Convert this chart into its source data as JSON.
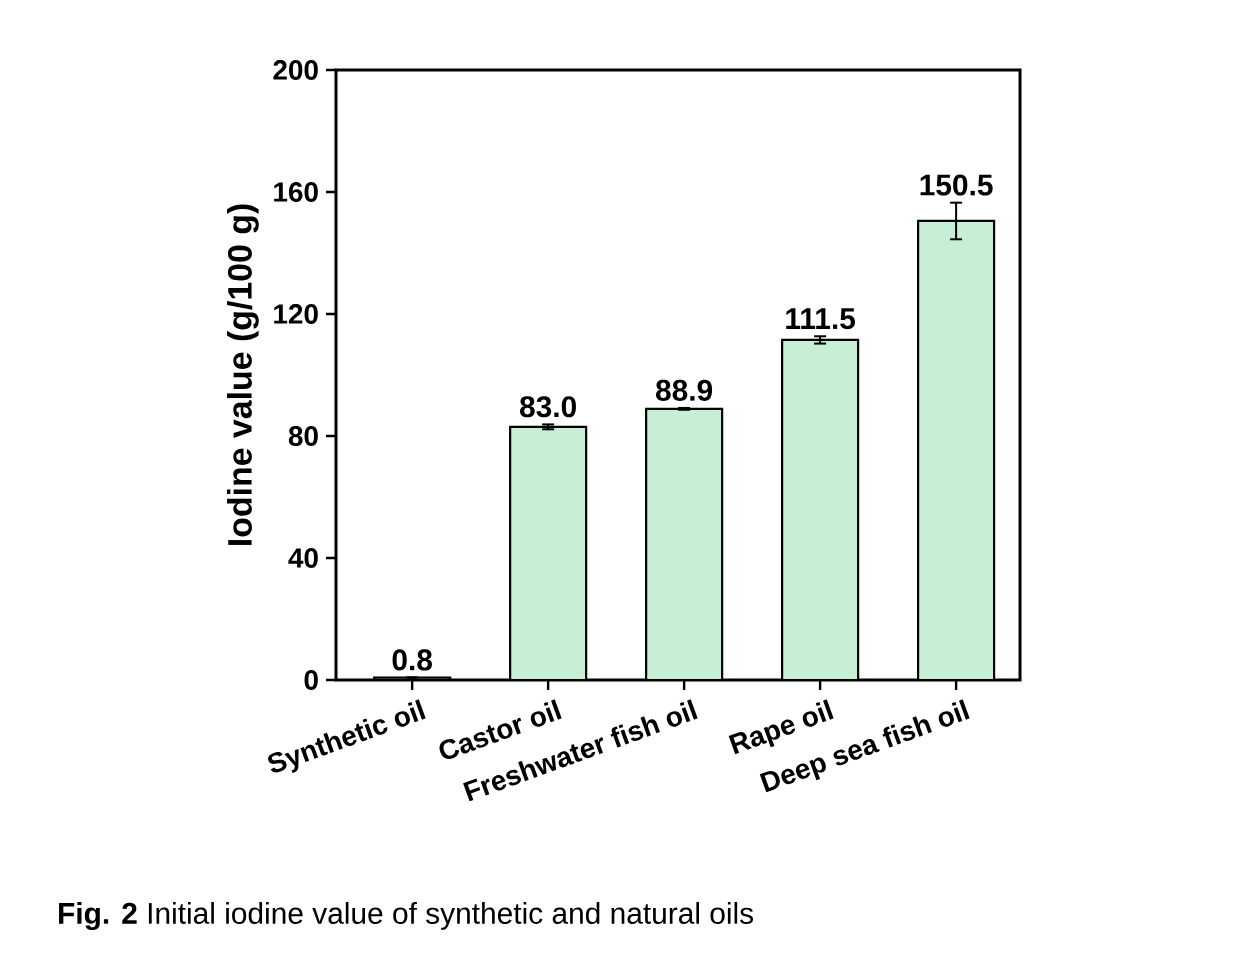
{
  "chart_data": {
    "type": "bar",
    "categories": [
      "Synthetic oil",
      "Castor oil",
      "Freshwater fish oil",
      "Rape oil",
      "Deep sea fish oil"
    ],
    "values": [
      0.8,
      83.0,
      88.9,
      111.5,
      150.5
    ],
    "value_labels": [
      "0.8",
      "83.0",
      "88.9",
      "111.5",
      "150.5"
    ],
    "errors": [
      null,
      0.8,
      0.3,
      1.2,
      6
    ],
    "color": "#c6efd6",
    "ylabel": "Iodine value (g/100 g)",
    "ylim": [
      0,
      200
    ],
    "yticks": [
      0,
      40,
      80,
      120,
      160,
      200
    ],
    "grid": false,
    "annotations": [
      "**Fig. 2**  Initial iodine value of synthetic and natural oils"
    ]
  }
}
